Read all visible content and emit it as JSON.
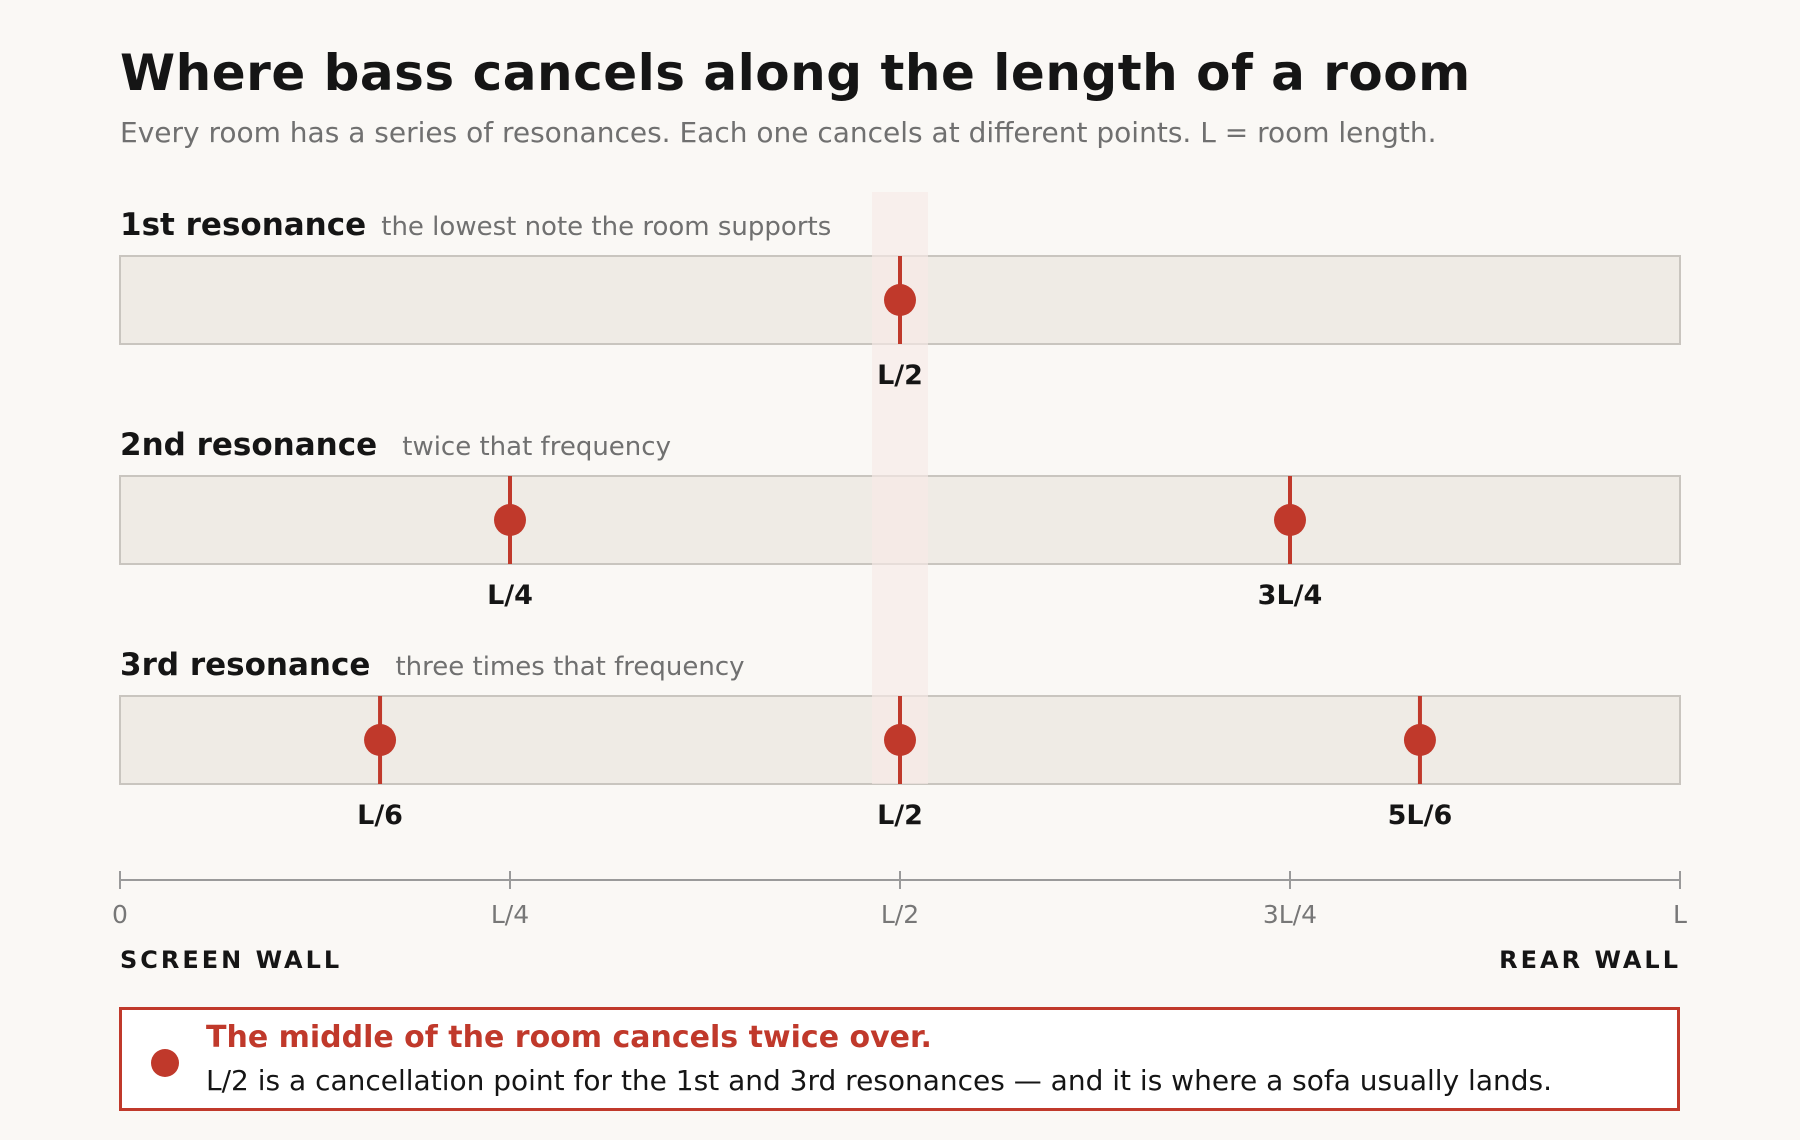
{
  "title": "Where bass cancels along the length of a room",
  "subtitle": "Every room has a series of resonances. Each one cancels at different points. L = room length.",
  "colors": {
    "accent": "#c0392b",
    "bar_fill": "#efebe5",
    "bar_border": "#c9c5bf",
    "highlight_band": "#f7e9e7",
    "axis": "#9a9a9a",
    "background": "#faf8f5"
  },
  "highlight_position": 0.5,
  "resonances": [
    {
      "name": "1st resonance",
      "description": "the lowest note the room supports",
      "nulls": [
        {
          "position": 0.5,
          "label": "L/2"
        }
      ]
    },
    {
      "name": "2nd resonance",
      "description": "twice that frequency",
      "nulls": [
        {
          "position": 0.25,
          "label": "L/4"
        },
        {
          "position": 0.75,
          "label": "3L/4"
        }
      ]
    },
    {
      "name": "3rd resonance",
      "description": "three times that frequency",
      "nulls": [
        {
          "position": 0.1667,
          "label": "L/6"
        },
        {
          "position": 0.5,
          "label": "L/2"
        },
        {
          "position": 0.8333,
          "label": "5L/6"
        }
      ]
    }
  ],
  "axis": {
    "ticks": [
      {
        "position": 0,
        "label": "0"
      },
      {
        "position": 0.25,
        "label": "L/4"
      },
      {
        "position": 0.5,
        "label": "L/2"
      },
      {
        "position": 0.75,
        "label": "3L/4"
      },
      {
        "position": 1,
        "label": "L"
      }
    ],
    "left_label": "SCREEN WALL",
    "right_label": "REAR WALL"
  },
  "callout": {
    "headline": "The middle of the room cancels twice over.",
    "body": "L/2 is a cancellation point for the 1st and 3rd resonances — and it is where a sofa usually lands."
  }
}
